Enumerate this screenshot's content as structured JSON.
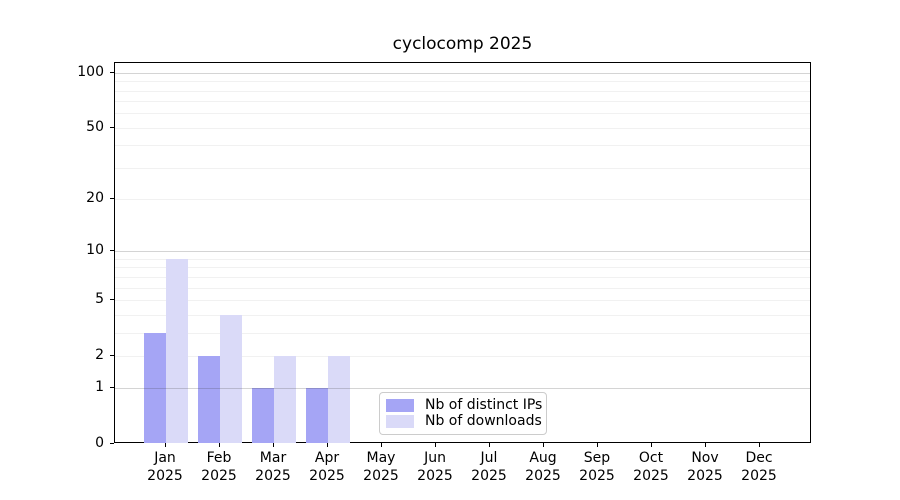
{
  "title": "cyclocomp 2025",
  "chart_data": {
    "type": "bar",
    "title": "cyclocomp 2025",
    "categories": [
      "Jan",
      "Feb",
      "Mar",
      "Apr",
      "May",
      "Jun",
      "Jul",
      "Aug",
      "Sep",
      "Oct",
      "Nov",
      "Dec"
    ],
    "category_year": "2025",
    "series": [
      {
        "name": "Nb of distinct IPs",
        "color": "#a5a5f5",
        "values": [
          3,
          2,
          1,
          1,
          0,
          0,
          0,
          0,
          0,
          0,
          0,
          0
        ]
      },
      {
        "name": "Nb of downloads",
        "color": "#dadaf8",
        "values": [
          9,
          4,
          2,
          2,
          0,
          0,
          0,
          0,
          0,
          0,
          0,
          0
        ]
      }
    ],
    "xlabel": "",
    "ylabel": "",
    "y_ticks": [
      0,
      1,
      2,
      5,
      10,
      20,
      50,
      100
    ],
    "y_scale": "log10(value+1)",
    "ylim": [
      0,
      113
    ],
    "grid": "horizontal",
    "major_gridlines": [
      1,
      10,
      100
    ],
    "minor_gridlines": [
      2,
      3,
      4,
      5,
      6,
      7,
      8,
      9,
      20,
      30,
      40,
      50,
      60,
      70,
      80,
      90
    ],
    "legend_position": "inside-lower-center"
  },
  "colors": {
    "background": "#ffffff",
    "axis": "#000000",
    "legend_border": "#cccccc"
  }
}
